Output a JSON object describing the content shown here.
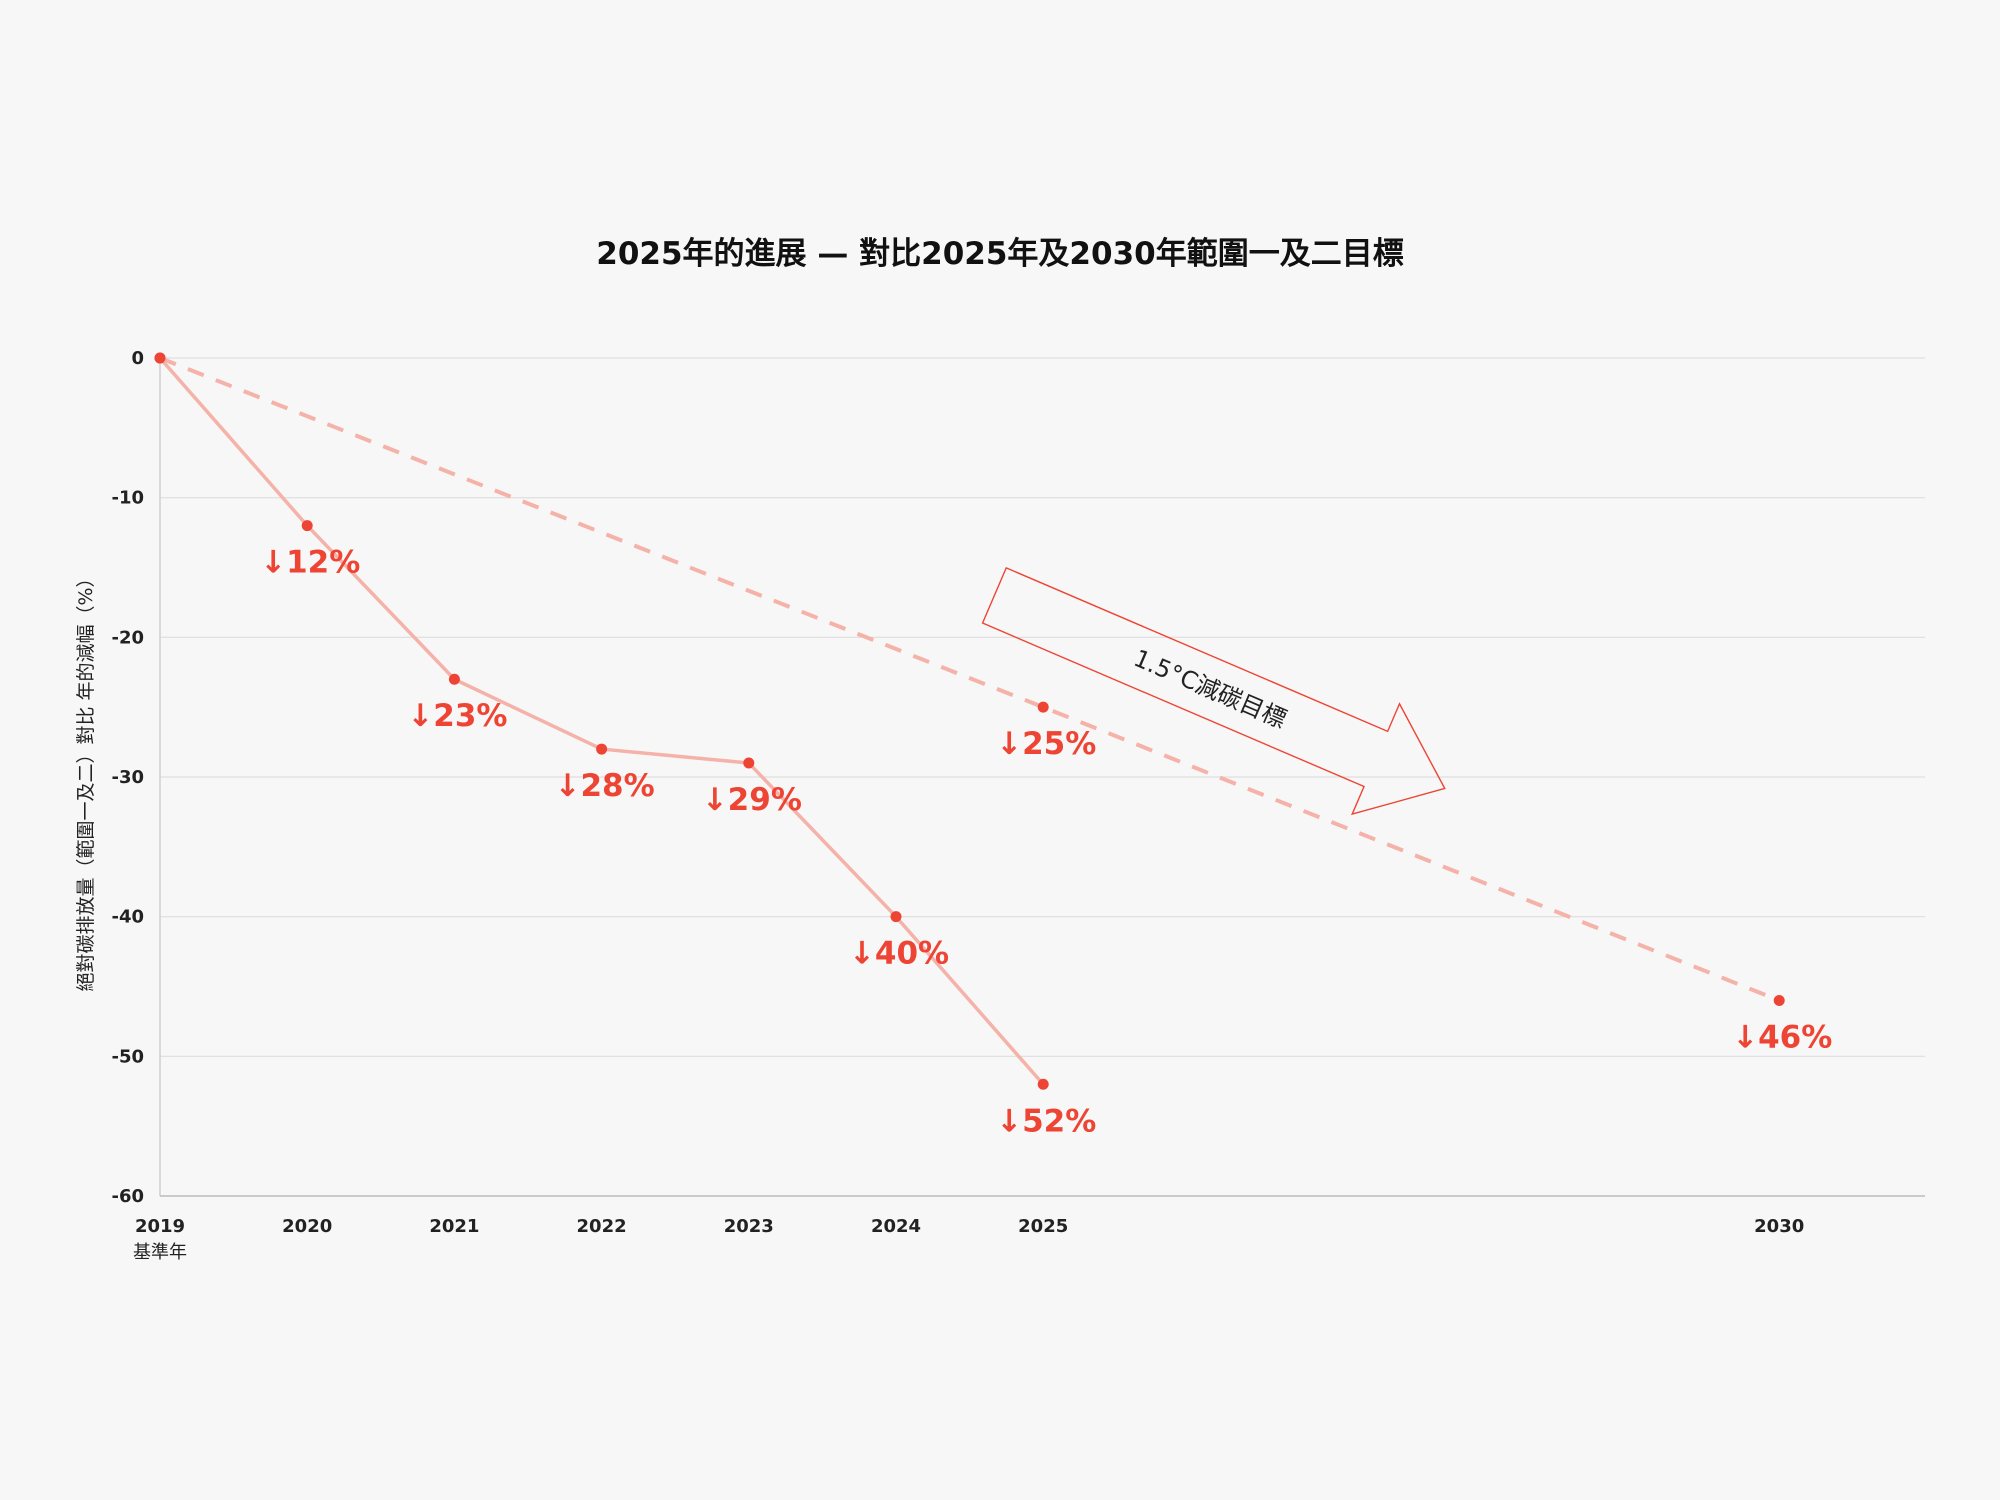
{
  "chart_data": {
    "type": "line",
    "title": "2025年的進展 — 對比2025年及2030年範圍一及二目標",
    "xlabel": "",
    "ylabel": "絕對碳排放量（範圍一及二）對比 年的減幅（%）",
    "ylim": [
      -60,
      0
    ],
    "yticks": [
      0,
      -10,
      -20,
      -30,
      -40,
      -50,
      -60
    ],
    "xticks": [
      {
        "year": 2019,
        "label": "2019",
        "sublabel": "基準年"
      },
      {
        "year": 2020,
        "label": "2020",
        "sublabel": ""
      },
      {
        "year": 2021,
        "label": "2021",
        "sublabel": ""
      },
      {
        "year": 2022,
        "label": "2022",
        "sublabel": ""
      },
      {
        "year": 2023,
        "label": "2023",
        "sublabel": ""
      },
      {
        "year": 2024,
        "label": "2024",
        "sublabel": ""
      },
      {
        "year": 2025,
        "label": "2025",
        "sublabel": ""
      },
      {
        "year": 2030,
        "label": "2030",
        "sublabel": ""
      }
    ],
    "grid": true,
    "series": [
      {
        "style": "solid",
        "color": "#f5b2a8",
        "x": [
          2019,
          2020,
          2021,
          2022,
          2023,
          2024,
          2025
        ],
        "values": [
          0,
          -12,
          -23,
          -28,
          -29,
          -40,
          -52
        ],
        "labels": [
          "",
          "↓12%",
          "↓23%",
          "↓28%",
          "↓29%",
          "↓40%",
          "↓52%"
        ]
      },
      {
        "style": "dashed",
        "color": "#f5b2a8",
        "x": [
          2019,
          2025,
          2030
        ],
        "values": [
          0,
          -25,
          -46
        ],
        "labels": [
          "",
          "↓25%",
          "↓46%"
        ]
      }
    ],
    "annotation": {
      "text": "1.5°C減碳目標"
    },
    "colors": {
      "line": "#f5b2a8",
      "point": "#ee4434",
      "label": "#ee4434",
      "grid": "#dedede",
      "arrow": "#ee4434"
    }
  }
}
